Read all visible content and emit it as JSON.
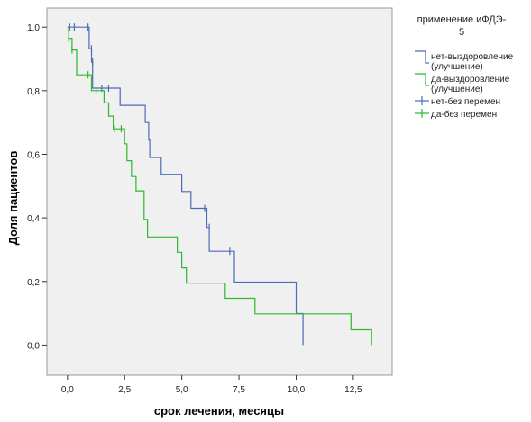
{
  "chart_data": {
    "type": "line",
    "xlabel": "срок лечения, месяцы",
    "ylabel": "Доля пациентов",
    "xlim": [
      -0.9,
      14.2
    ],
    "ylim": [
      -0.095,
      1.06
    ],
    "x_ticks": [
      0.0,
      2.5,
      5.0,
      7.5,
      10.0,
      12.5
    ],
    "x_tick_labels": [
      "0,0",
      "2,5",
      "5,0",
      "7,5",
      "10,0",
      "12,5"
    ],
    "y_ticks": [
      0.0,
      0.2,
      0.4,
      0.6,
      0.8,
      1.0
    ],
    "y_tick_labels": [
      "0,0",
      "0,2",
      "0,4",
      "0,6",
      "0,8",
      "1,0"
    ],
    "grid": false,
    "legend": {
      "title": [
        "применение иФДЭ-",
        "5"
      ],
      "placement": "right",
      "entries": [
        {
          "label": [
            "нет-выздоровление",
            "(улучшение)"
          ],
          "color": "#4a6db4",
          "kind": "line"
        },
        {
          "label": [
            "да-выздоровление",
            "(улучшение)"
          ],
          "color": "#2eb82e",
          "kind": "line"
        },
        {
          "label": [
            "нет-без перемен"
          ],
          "color": "#4a6db4",
          "kind": "censor"
        },
        {
          "label": [
            "да-без перемен"
          ],
          "color": "#2eb82e",
          "kind": "censor"
        }
      ]
    },
    "series": [
      {
        "color": "#4a6db4",
        "steps": [
          [
            0.0,
            1.0
          ],
          [
            0.95,
            0.932
          ],
          [
            1.05,
            0.89
          ],
          [
            1.1,
            0.808
          ],
          [
            2.3,
            0.754
          ],
          [
            3.4,
            0.7
          ],
          [
            3.55,
            0.645
          ],
          [
            3.6,
            0.59
          ],
          [
            4.1,
            0.537
          ],
          [
            5.0,
            0.483
          ],
          [
            5.4,
            0.43
          ],
          [
            6.1,
            0.37
          ],
          [
            6.2,
            0.295
          ],
          [
            7.3,
            0.198
          ],
          [
            10.0,
            0.099
          ],
          [
            10.3,
            0.0
          ]
        ],
        "censored": [
          [
            0.1,
            1.0
          ],
          [
            0.3,
            1.0
          ],
          [
            0.9,
            1.0
          ],
          [
            1.05,
            0.932
          ],
          [
            1.1,
            0.89
          ],
          [
            1.5,
            0.808
          ],
          [
            1.8,
            0.808
          ],
          [
            6.0,
            0.43
          ],
          [
            6.2,
            0.37
          ],
          [
            7.1,
            0.295
          ]
        ]
      },
      {
        "color": "#2eb82e",
        "steps": [
          [
            0.0,
            1.0
          ],
          [
            0.05,
            0.965
          ],
          [
            0.2,
            0.928
          ],
          [
            0.4,
            0.85
          ],
          [
            1.05,
            0.8
          ],
          [
            1.6,
            0.762
          ],
          [
            1.8,
            0.72
          ],
          [
            2.0,
            0.68
          ],
          [
            2.5,
            0.633
          ],
          [
            2.6,
            0.58
          ],
          [
            2.8,
            0.53
          ],
          [
            3.0,
            0.485
          ],
          [
            3.35,
            0.395
          ],
          [
            3.5,
            0.34
          ],
          [
            4.8,
            0.292
          ],
          [
            5.0,
            0.243
          ],
          [
            5.2,
            0.195
          ],
          [
            6.9,
            0.147
          ],
          [
            8.2,
            0.098
          ],
          [
            12.4,
            0.048
          ],
          [
            13.3,
            0.0
          ]
        ],
        "censored": [
          [
            0.05,
            0.965
          ],
          [
            0.2,
            0.928
          ],
          [
            0.9,
            0.85
          ],
          [
            1.25,
            0.8
          ],
          [
            2.05,
            0.68
          ],
          [
            2.35,
            0.68
          ]
        ]
      }
    ]
  }
}
